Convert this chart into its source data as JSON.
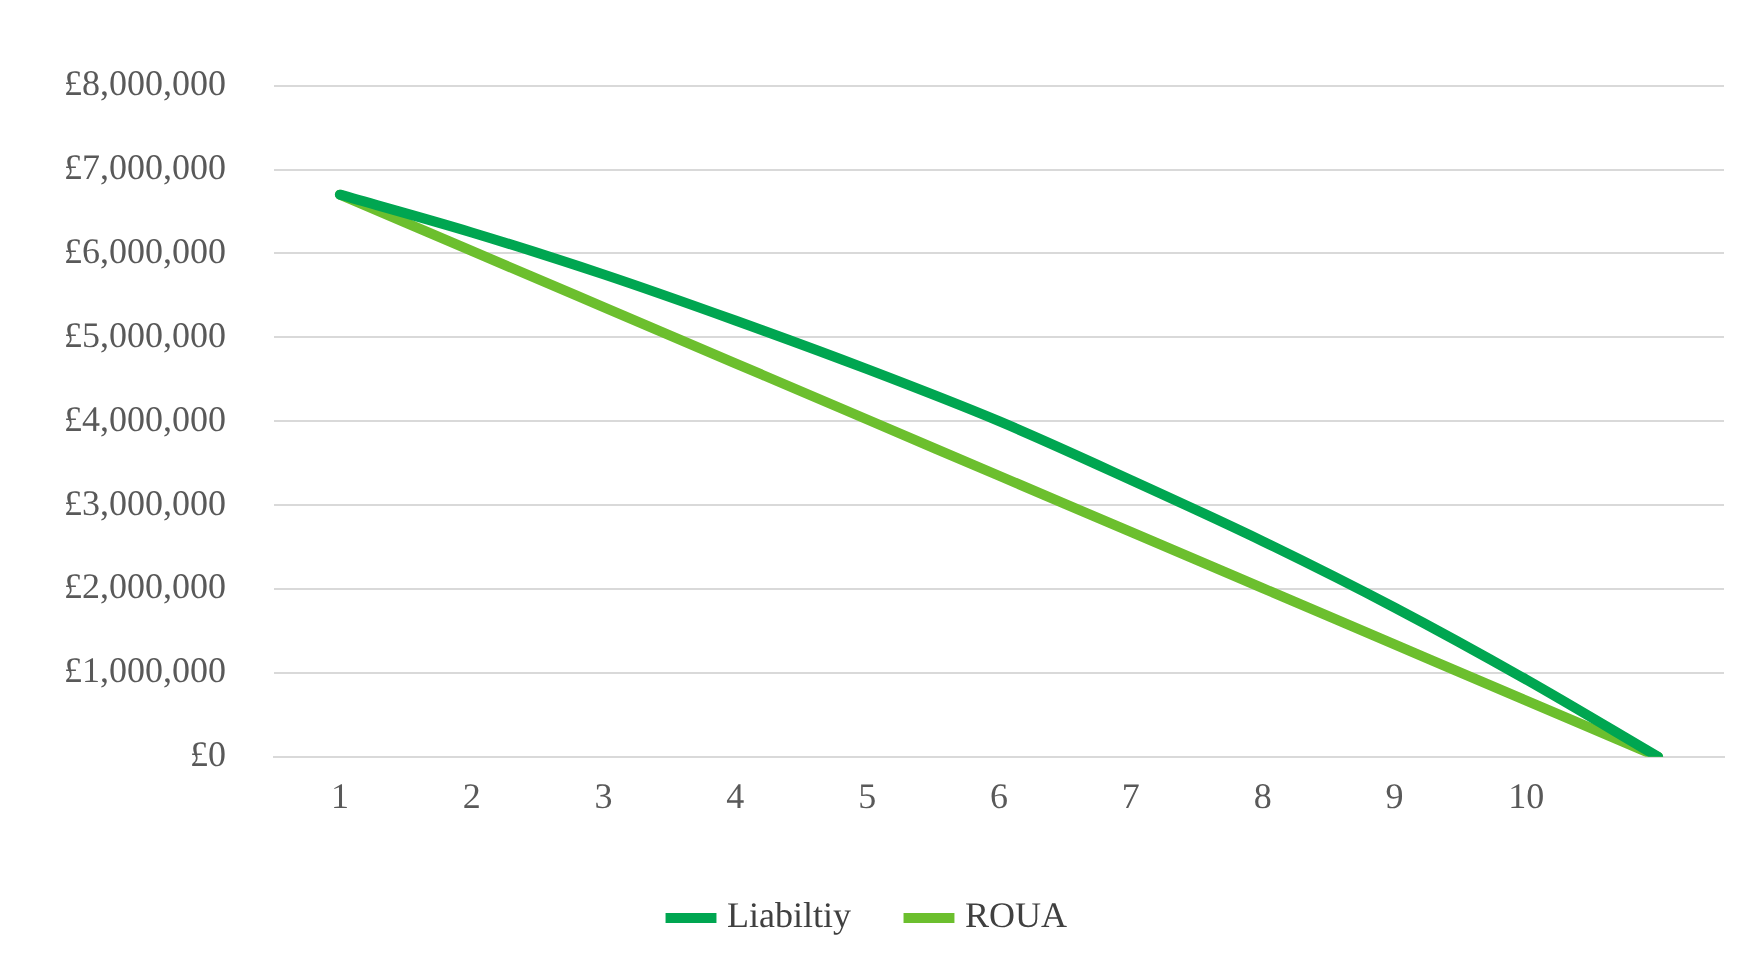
{
  "chart_data": {
    "type": "line",
    "categories": [
      "1",
      "2",
      "3",
      "4",
      "5",
      "6",
      "7",
      "8",
      "9",
      "10",
      null
    ],
    "series": [
      {
        "name": "Liabiltiy",
        "color": "#00a651",
        "values": [
          6700000,
          6250000,
          5750000,
          5200000,
          4620000,
          4000000,
          3300000,
          2570000,
          1780000,
          920000,
          0
        ]
      },
      {
        "name": "ROUA",
        "color": "#6cbf2e",
        "values": [
          6700000,
          6030000,
          5360000,
          4690000,
          4020000,
          3350000,
          2680000,
          2010000,
          1340000,
          670000,
          0
        ]
      }
    ],
    "ylim": [
      0,
      8000000
    ],
    "yticks": [
      {
        "value": 0,
        "label": "£0"
      },
      {
        "value": 1000000,
        "label": "£1,000,000"
      },
      {
        "value": 2000000,
        "label": "£2,000,000"
      },
      {
        "value": 3000000,
        "label": "£3,000,000"
      },
      {
        "value": 4000000,
        "label": "£4,000,000"
      },
      {
        "value": 5000000,
        "label": "£5,000,000"
      },
      {
        "value": 6000000,
        "label": "£6,000,000"
      },
      {
        "value": 7000000,
        "label": "£7,000,000"
      },
      {
        "value": 8000000,
        "label": "£8,000,000"
      }
    ],
    "grid": "y",
    "legend": "bottom",
    "marker": "none",
    "line_style": "solid"
  }
}
